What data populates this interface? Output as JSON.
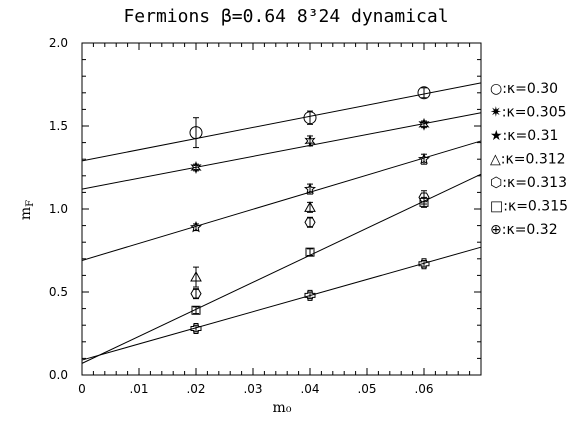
{
  "chart_data": {
    "type": "scatter",
    "title": "Fermions β=0.64 8³24 dynamical",
    "xlabel": "m₀",
    "ylabel": "m_F",
    "xlim": [
      0,
      0.07
    ],
    "ylim": [
      0,
      2.0
    ],
    "x_ticks": [
      0,
      0.01,
      0.02,
      0.03,
      0.04,
      0.05,
      0.06
    ],
    "x_tick_labels": [
      "0",
      ".01",
      ".02",
      ".03",
      ".04",
      ".05",
      ".06"
    ],
    "y_ticks": [
      0,
      0.5,
      1.0,
      1.5,
      2.0
    ],
    "y_tick_labels": [
      "0.0",
      "0.5",
      "1.0",
      "1.5",
      "2.0"
    ],
    "grid": false,
    "legend_position": "right",
    "series": [
      {
        "name": "○:κ=0.30",
        "marker": "circle",
        "points": [
          {
            "x": 0.02,
            "y": 1.46,
            "err": 0.09
          },
          {
            "x": 0.04,
            "y": 1.55,
            "err": 0.04
          },
          {
            "x": 0.06,
            "y": 1.7,
            "err": 0.03
          }
        ]
      },
      {
        "name": "✷:κ=0.305",
        "marker": "star6",
        "points": [
          {
            "x": 0.02,
            "y": 1.25,
            "err": 0.02
          },
          {
            "x": 0.04,
            "y": 1.41,
            "err": 0.03
          },
          {
            "x": 0.06,
            "y": 1.51,
            "err": 0.02
          }
        ]
      },
      {
        "name": "★:κ=0.31",
        "marker": "star5",
        "points": [
          {
            "x": 0.02,
            "y": 0.89,
            "err": 0.02
          },
          {
            "x": 0.04,
            "y": 1.12,
            "err": 0.03
          },
          {
            "x": 0.06,
            "y": 1.3,
            "err": 0.03
          }
        ]
      },
      {
        "name": "△:κ=0.312",
        "marker": "triangle",
        "points": [
          {
            "x": 0.02,
            "y": 0.59,
            "err": 0.06
          },
          {
            "x": 0.04,
            "y": 1.01,
            "err": 0.03
          }
        ]
      },
      {
        "name": "⬡:κ=0.313",
        "marker": "hexagon",
        "points": [
          {
            "x": 0.02,
            "y": 0.49,
            "err": 0.03
          },
          {
            "x": 0.04,
            "y": 0.92,
            "err": 0.03
          },
          {
            "x": 0.06,
            "y": 1.07,
            "err": 0.04
          }
        ]
      },
      {
        "name": "□:κ=0.315",
        "marker": "square",
        "points": [
          {
            "x": 0.02,
            "y": 0.39,
            "err": 0.02
          },
          {
            "x": 0.04,
            "y": 0.74,
            "err": 0.02
          },
          {
            "x": 0.06,
            "y": 1.04,
            "err": 0.03
          }
        ]
      },
      {
        "name": "⊕:κ=0.32",
        "marker": "cross",
        "points": [
          {
            "x": 0.02,
            "y": 0.28,
            "err": 0.02
          },
          {
            "x": 0.04,
            "y": 0.48,
            "err": 0.02
          },
          {
            "x": 0.06,
            "y": 0.67,
            "err": 0.02
          }
        ]
      }
    ],
    "fit_lines": [
      {
        "x": [
          0,
          0.07
        ],
        "y": [
          1.29,
          1.76
        ]
      },
      {
        "x": [
          0,
          0.07
        ],
        "y": [
          1.12,
          1.58
        ]
      },
      {
        "x": [
          0,
          0.07
        ],
        "y": [
          0.69,
          1.41
        ]
      },
      {
        "x": [
          0,
          0.07
        ],
        "y": [
          0.07,
          1.21
        ]
      },
      {
        "x": [
          0,
          0.07
        ],
        "y": [
          0.09,
          0.77
        ]
      }
    ]
  }
}
